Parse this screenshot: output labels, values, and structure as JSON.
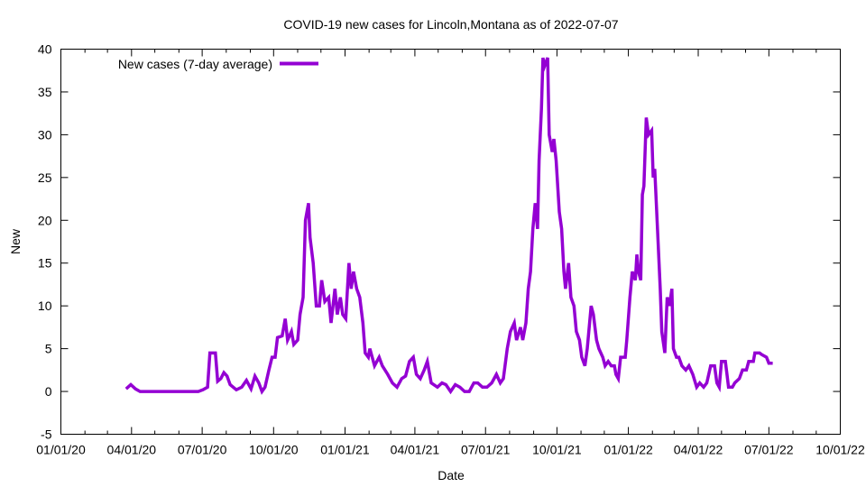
{
  "chart_data": {
    "type": "line",
    "title": "COVID-19 new cases for Lincoln,Montana as of 2022-07-07",
    "xlabel": "Date",
    "ylabel": "New",
    "x_unit": "days since 2020-01-01",
    "xlim": [
      0,
      1004
    ],
    "ylim": [
      -5,
      40
    ],
    "yticks": [
      -5,
      0,
      5,
      10,
      15,
      20,
      25,
      30,
      35,
      40
    ],
    "xticks": [
      {
        "day": 0,
        "label": "01/01/20"
      },
      {
        "day": 91,
        "label": "04/01/20"
      },
      {
        "day": 182,
        "label": "07/01/20"
      },
      {
        "day": 274,
        "label": "10/01/20"
      },
      {
        "day": 366,
        "label": "01/01/21"
      },
      {
        "day": 456,
        "label": "04/01/21"
      },
      {
        "day": 547,
        "label": "07/01/21"
      },
      {
        "day": 639,
        "label": "10/01/21"
      },
      {
        "day": 731,
        "label": "01/01/22"
      },
      {
        "day": 821,
        "label": "04/01/22"
      },
      {
        "day": 912,
        "label": "07/01/22"
      },
      {
        "day": 1004,
        "label": "10/01/22"
      }
    ],
    "minor_ticks_days": [
      31,
      60,
      121,
      152,
      213,
      244,
      305,
      335,
      397,
      425,
      486,
      517,
      578,
      609,
      670,
      700,
      762,
      790,
      851,
      882,
      943,
      973
    ],
    "grid": false,
    "legend": {
      "position": "top-left",
      "entries": [
        "New cases (7-day average)"
      ]
    },
    "series": [
      {
        "name": "New cases (7-day average)",
        "color": "#9400d3",
        "x": [
          84,
          90,
          96,
          102,
          177,
          183,
          189,
          192,
          199,
          202,
          206,
          210,
          214,
          218,
          226,
          233,
          239,
          245,
          250,
          255,
          259,
          263,
          268,
          272,
          276,
          279,
          285,
          289,
          292,
          297,
          300,
          305,
          308,
          312,
          315,
          319,
          321,
          325,
          329,
          333,
          336,
          340,
          345,
          348,
          353,
          356,
          360,
          363,
          367,
          371,
          374,
          377,
          381,
          385,
          389,
          392,
          396,
          398,
          404,
          410,
          414,
          421,
          427,
          433,
          439,
          444,
          449,
          454,
          458,
          463,
          468,
          472,
          477,
          485,
          491,
          496,
          502,
          508,
          514,
          520,
          526,
          532,
          537,
          543,
          549,
          555,
          561,
          566,
          570,
          575,
          579,
          584,
          587,
          592,
          595,
          599,
          602,
          605,
          608,
          611,
          614,
          616,
          619,
          621,
          623,
          627,
          629,
          633,
          635,
          638,
          642,
          645,
          648,
          650,
          654,
          657,
          661,
          664,
          668,
          671,
          675,
          678,
          683,
          686,
          690,
          693,
          698,
          701,
          705,
          709,
          713,
          715,
          718,
          721,
          723,
          727,
          729,
          733,
          736,
          740,
          742,
          744,
          747,
          749,
          751,
          754,
          757,
          761,
          763,
          765,
          769,
          772,
          774,
          778,
          781,
          784,
          787,
          789,
          793,
          796,
          800,
          805,
          809,
          814,
          819,
          823,
          828,
          832,
          837,
          842,
          845,
          848,
          851,
          856,
          858,
          860,
          865,
          868,
          874,
          878,
          883,
          886,
          892,
          894,
          900,
          903,
          909,
          912,
          917
        ],
        "y": [
          0.3,
          0.8,
          0.3,
          0,
          0,
          0.2,
          0.5,
          4.5,
          4.5,
          1.2,
          1.5,
          2.2,
          1.8,
          0.8,
          0.2,
          0.5,
          1.3,
          0.3,
          1.8,
          1,
          0,
          0.5,
          2.5,
          4,
          4,
          6.3,
          6.5,
          8.5,
          6,
          7,
          5.5,
          6,
          9,
          11,
          20,
          22,
          18,
          15,
          10,
          10,
          13,
          10.5,
          11,
          8,
          12,
          9,
          11,
          9,
          8.5,
          15,
          12,
          14,
          12,
          11,
          8,
          4.5,
          4,
          5,
          3,
          4,
          3,
          2,
          1,
          0.5,
          1.5,
          1.8,
          3.5,
          4,
          2,
          1.5,
          2.5,
          3.5,
          1,
          0.5,
          1,
          0.8,
          0,
          0.8,
          0.5,
          0,
          0,
          1,
          1,
          0.5,
          0.5,
          1,
          2,
          1,
          1.5,
          5,
          7,
          8,
          6,
          7.5,
          6,
          8,
          12,
          14,
          19,
          22,
          19,
          27,
          33,
          39,
          38,
          39,
          30,
          28,
          29.5,
          27,
          21,
          19,
          14,
          12,
          15,
          11,
          10,
          7,
          6,
          4,
          3,
          5,
          10,
          9,
          6,
          5,
          4,
          3,
          3.5,
          3,
          3,
          2,
          1.5,
          4,
          4,
          4,
          6,
          11,
          14,
          13,
          16,
          14,
          13,
          23,
          24,
          32,
          30,
          30.5,
          25,
          26,
          18,
          12,
          7,
          4.5,
          11,
          10,
          12,
          5,
          4,
          4,
          3,
          2.5,
          3,
          2,
          0.5,
          1,
          0.5,
          1,
          3,
          3,
          1,
          0.5,
          3.5,
          3.5,
          2,
          0.5,
          0.5,
          1,
          1.5,
          2.5,
          2.5,
          3.5,
          3.5,
          4.5,
          4.5,
          4.3,
          4,
          3.3,
          3.3
        ]
      }
    ]
  }
}
